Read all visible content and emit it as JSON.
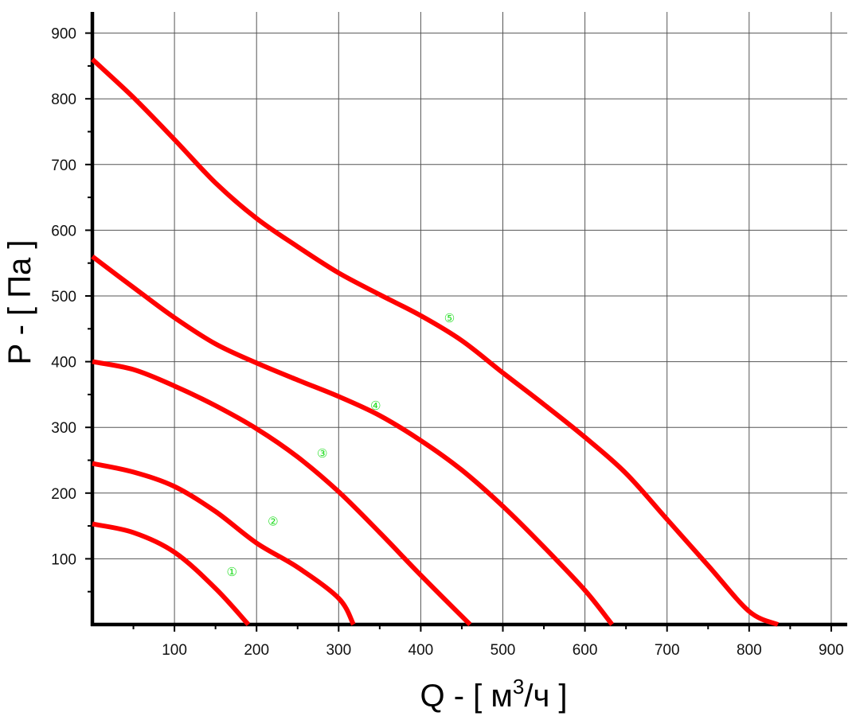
{
  "chart_data": {
    "type": "line",
    "xlabel_prefix": "Q - [ м",
    "xlabel_sup": "3",
    "xlabel_suffix": "/ч ]",
    "ylabel": "P - [ Па ]",
    "xlim": [
      0,
      900
    ],
    "ylim": [
      0,
      900
    ],
    "x_ticks": [
      100,
      200,
      300,
      400,
      500,
      600,
      700,
      800,
      900
    ],
    "y_ticks": [
      100,
      200,
      300,
      400,
      500,
      600,
      700,
      800,
      900
    ],
    "x_tick_labels": [
      "100",
      "200",
      "300",
      "400",
      "500",
      "600",
      "700",
      "800",
      "900"
    ],
    "y_tick_labels": [
      "100",
      "200",
      "300",
      "400",
      "500",
      "600",
      "700",
      "800",
      "900"
    ],
    "grid": true,
    "line_color": "#ff0000",
    "label_color": "#22dd22",
    "series": [
      {
        "label": "①",
        "label_at": [
          170,
          80
        ],
        "points": [
          [
            0,
            153
          ],
          [
            50,
            140
          ],
          [
            100,
            110
          ],
          [
            150,
            55
          ],
          [
            190,
            0
          ]
        ]
      },
      {
        "label": "②",
        "label_at": [
          220,
          157
        ],
        "points": [
          [
            0,
            245
          ],
          [
            50,
            232
          ],
          [
            100,
            210
          ],
          [
            150,
            172
          ],
          [
            200,
            124
          ],
          [
            250,
            87
          ],
          [
            300,
            40
          ],
          [
            318,
            0
          ]
        ]
      },
      {
        "label": "③",
        "label_at": [
          280,
          260
        ],
        "points": [
          [
            0,
            400
          ],
          [
            50,
            388
          ],
          [
            100,
            363
          ],
          [
            150,
            333
          ],
          [
            200,
            298
          ],
          [
            250,
            255
          ],
          [
            300,
            202
          ],
          [
            350,
            140
          ],
          [
            400,
            75
          ],
          [
            460,
            0
          ]
        ]
      },
      {
        "label": "④",
        "label_at": [
          345,
          333
        ],
        "points": [
          [
            0,
            560
          ],
          [
            50,
            513
          ],
          [
            100,
            467
          ],
          [
            150,
            427
          ],
          [
            200,
            398
          ],
          [
            250,
            372
          ],
          [
            300,
            347
          ],
          [
            350,
            318
          ],
          [
            400,
            280
          ],
          [
            450,
            235
          ],
          [
            500,
            180
          ],
          [
            550,
            118
          ],
          [
            600,
            52
          ],
          [
            633,
            0
          ]
        ]
      },
      {
        "label": "⑤",
        "label_at": [
          435,
          466
        ],
        "points": [
          [
            0,
            860
          ],
          [
            50,
            802
          ],
          [
            100,
            738
          ],
          [
            150,
            672
          ],
          [
            200,
            618
          ],
          [
            250,
            575
          ],
          [
            300,
            535
          ],
          [
            350,
            502
          ],
          [
            400,
            470
          ],
          [
            450,
            432
          ],
          [
            500,
            383
          ],
          [
            550,
            335
          ],
          [
            600,
            285
          ],
          [
            650,
            230
          ],
          [
            700,
            160
          ],
          [
            750,
            90
          ],
          [
            800,
            20
          ],
          [
            835,
            0
          ]
        ]
      }
    ]
  }
}
